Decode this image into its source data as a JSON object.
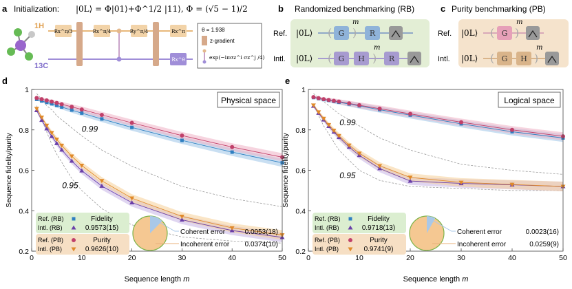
{
  "panel_a": {
    "letter": "a",
    "init_label": "Initialization:",
    "init_formula": "|0L⟩ = Φ|01⟩+Φ^1/2 |11⟩, Φ = (√5 − 1)/2",
    "h_label": "1H",
    "c_label": "13C",
    "gate_rx_pi3": "Rx^π/3",
    "gate_rx_pi4": "Rx^π/4",
    "gate_ry_pi4": "Ry^π/4",
    "gate_rx_pi": "Rx^π",
    "gate_rx_theta": "Rx^θ",
    "legend_theta": "θ = 1.938",
    "legend_zgrad": "z-gradient",
    "legend_coupling": "exp(−iπσz^i σz^j /4)"
  },
  "panel_b": {
    "letter": "b",
    "title": "Randomized benchmarking (RB)",
    "ref_label": "Ref.",
    "intl_label": "Intl.",
    "ket": "|0L⟩",
    "gate_g": "G",
    "gate_r": "R",
    "gate_h": "H",
    "power_m": "m",
    "colors": {
      "bg": "#e3eed5",
      "g_fill": "#8fb3d9",
      "r_fill": "#a79bd0",
      "h_fill": "#a79bd0"
    }
  },
  "panel_c": {
    "letter": "c",
    "title": "Purity benchmarking (PB)",
    "ref_label": "Ref.",
    "intl_label": "Intl.",
    "ket": "|0L⟩",
    "gate_g": "G",
    "gate_h": "H",
    "power_m": "m",
    "colors": {
      "bg": "#f5e3cc",
      "g_fill": "#e6a0b8",
      "gh_fill": "#d9b48a"
    }
  },
  "chart_data": [
    {
      "panel": "d",
      "type": "line",
      "title": "Physical space",
      "xlabel": "Sequence length m",
      "ylabel": "Sequence fidelity/purity",
      "xlim": [
        0,
        50
      ],
      "ylim": [
        0.2,
        1.0
      ],
      "xticks": [
        0,
        10,
        20,
        30,
        40,
        50
      ],
      "yticks": [
        0.2,
        0.4,
        0.6,
        0.8,
        1.0
      ],
      "ytick_labels": [
        "0.2",
        "0.4",
        "0.6",
        "0.8",
        "1"
      ],
      "x": [
        1,
        2,
        3,
        4,
        5,
        6,
        8,
        10,
        14,
        20,
        30,
        40,
        50
      ],
      "series": [
        {
          "name": "Ref. (RB)",
          "marker": "square",
          "color": "#2f7fc1",
          "values": [
            0.951,
            0.943,
            0.936,
            0.929,
            0.921,
            0.913,
            0.898,
            0.883,
            0.854,
            0.812,
            0.748,
            0.69,
            0.637
          ]
        },
        {
          "name": "Intl. (RB)",
          "marker": "triangle-up",
          "color": "#6a3fa8",
          "values": [
            0.896,
            0.848,
            0.806,
            0.768,
            0.733,
            0.701,
            0.646,
            0.598,
            0.522,
            0.44,
            0.355,
            0.302,
            0.268
          ]
        },
        {
          "name": "Ref. (PB)",
          "marker": "circle",
          "color": "#c0406a",
          "values": [
            0.958,
            0.952,
            0.946,
            0.94,
            0.933,
            0.927,
            0.914,
            0.901,
            0.874,
            0.835,
            0.772,
            0.715,
            0.665
          ]
        },
        {
          "name": "Intl. (PB)",
          "marker": "triangle-down",
          "color": "#e08a2a",
          "values": [
            0.905,
            0.862,
            0.822,
            0.786,
            0.753,
            0.723,
            0.67,
            0.624,
            0.548,
            0.462,
            0.372,
            0.315,
            0.28
          ]
        }
      ],
      "reference_curves": [
        {
          "label": "0.99",
          "values": [
            0.98,
            0.95,
            0.92,
            0.9,
            0.87,
            0.85,
            0.81,
            0.77,
            0.7,
            0.62,
            0.52,
            0.46,
            0.42
          ]
        },
        {
          "label": "0.95",
          "values": [
            0.92,
            0.85,
            0.79,
            0.73,
            0.68,
            0.64,
            0.56,
            0.5,
            0.41,
            0.33,
            0.27,
            0.25,
            0.24
          ]
        }
      ],
      "legend": {
        "rows_rb": [
          {
            "label": "Ref. (RB)",
            "text": "Fidelity"
          },
          {
            "label": "Intl. (RB)",
            "text": "0.9573(15)"
          }
        ],
        "rows_pb": [
          {
            "label": "Ref. (PB)",
            "text": "Purity"
          },
          {
            "label": "Intl. (PB)",
            "text": "0.9626(10)"
          }
        ]
      },
      "pie": {
        "coherent_fraction": 0.124,
        "incoherent_fraction": 0.876
      },
      "coherent_label": "Coherent error",
      "coherent_value": "0.0053(18)",
      "incoherent_label": "Incoherent error",
      "incoherent_value": "0.0374(10)"
    },
    {
      "panel": "e",
      "type": "line",
      "title": "Logical space",
      "xlabel": "Sequence length m",
      "ylabel": "Sequence fidelity/purity",
      "xlim": [
        0,
        50
      ],
      "ylim": [
        0.2,
        1.0
      ],
      "xticks": [
        0,
        10,
        20,
        30,
        40,
        50
      ],
      "yticks": [
        0.2,
        0.4,
        0.6,
        0.8,
        1.0
      ],
      "ytick_labels": [
        "0.2",
        "0.4",
        "0.6",
        "0.8",
        "1"
      ],
      "x": [
        1,
        2,
        3,
        4,
        5,
        6,
        8,
        10,
        14,
        20,
        30,
        40,
        50
      ],
      "series": [
        {
          "name": "Ref. (RB)",
          "marker": "square",
          "color": "#2f7fc1",
          "values": [
            0.96,
            0.955,
            0.95,
            0.946,
            0.941,
            0.937,
            0.928,
            0.919,
            0.9,
            0.873,
            0.83,
            0.791,
            0.76
          ]
        },
        {
          "name": "Intl. (RB)",
          "marker": "triangle-up",
          "color": "#6a3fa8",
          "values": [
            0.918,
            0.883,
            0.85,
            0.818,
            0.79,
            0.763,
            0.715,
            0.674,
            0.609,
            0.547,
            0.535,
            0.528,
            0.52
          ]
        },
        {
          "name": "Ref. (PB)",
          "marker": "circle",
          "color": "#c0406a",
          "values": [
            0.962,
            0.957,
            0.952,
            0.948,
            0.944,
            0.94,
            0.931,
            0.922,
            0.905,
            0.879,
            0.838,
            0.8,
            0.768
          ]
        },
        {
          "name": "Intl. (PB)",
          "marker": "triangle-down",
          "color": "#e08a2a",
          "values": [
            0.922,
            0.888,
            0.856,
            0.825,
            0.797,
            0.771,
            0.724,
            0.684,
            0.622,
            0.565,
            0.54,
            0.53,
            0.52
          ]
        }
      ],
      "reference_curves": [
        {
          "label": "0.99",
          "values": [
            0.98,
            0.96,
            0.94,
            0.92,
            0.9,
            0.88,
            0.85,
            0.82,
            0.76,
            0.7,
            0.63,
            0.6,
            0.58
          ]
        },
        {
          "label": "0.95",
          "values": [
            0.93,
            0.87,
            0.82,
            0.78,
            0.74,
            0.7,
            0.65,
            0.6,
            0.55,
            0.52,
            0.51,
            0.5,
            0.5
          ]
        }
      ],
      "legend": {
        "rows_rb": [
          {
            "label": "Ref. (RB)",
            "text": "Fidelity"
          },
          {
            "label": "Intl. (RB)",
            "text": "0.9718(13)"
          }
        ],
        "rows_pb": [
          {
            "label": "Ref. (PB)",
            "text": "Purity"
          },
          {
            "label": "Intl. (PB)",
            "text": "0.9741(9)"
          }
        ]
      },
      "pie": {
        "coherent_fraction": 0.082,
        "incoherent_fraction": 0.918
      },
      "coherent_label": "Coherent error",
      "coherent_value": "0.0023(16)",
      "incoherent_label": "Incoherent error",
      "incoherent_value": "0.0259(9)"
    }
  ],
  "chart_letters": [
    "d",
    "e"
  ],
  "colors": {
    "band_blue": "#9cc4e8",
    "band_purple": "#c6b4e6",
    "band_red": "#efb0c4",
    "band_orange": "#f6cf98",
    "green_box": "#dbeed0",
    "orange_box": "#f6dfc4",
    "pie_orange": "#f5c892",
    "pie_blue": "#a9c8e8",
    "pie_ring": "#7bb347"
  }
}
